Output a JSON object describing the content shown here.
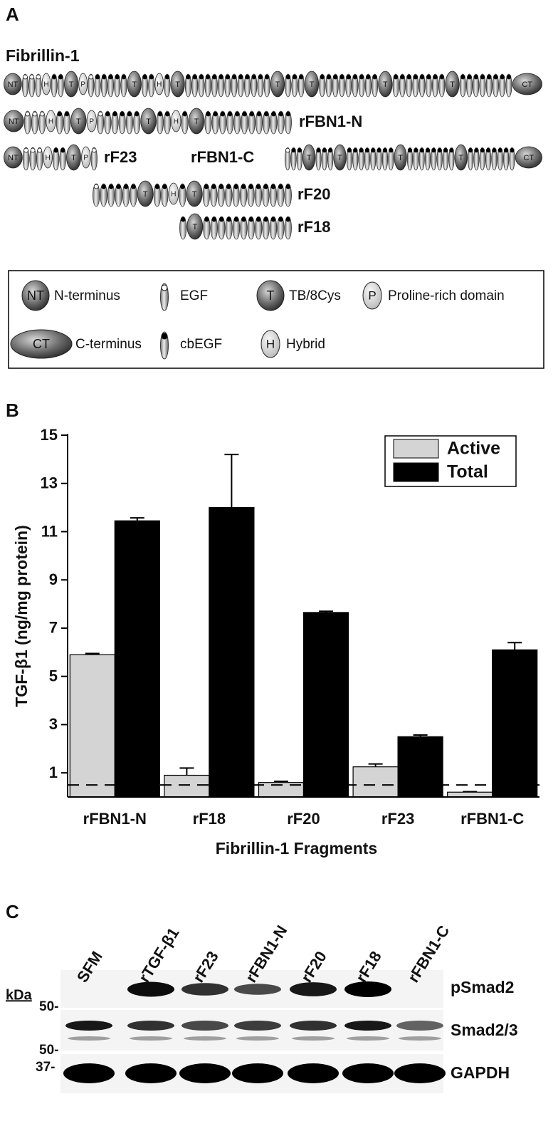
{
  "panel_a": {
    "label": "A",
    "constructs": [
      {
        "name": "Fibrillin-1",
        "domains": [
          "NT",
          "H",
          "T",
          "P",
          "T",
          "H",
          "T",
          "T",
          "T",
          "T",
          "T",
          "CT"
        ]
      },
      {
        "name": "rFBN1-N",
        "domains": [
          "NT",
          "H",
          "T",
          "P",
          "T",
          "H",
          "T"
        ]
      },
      {
        "name": "rF23",
        "domains": [
          "NT",
          "H",
          "T",
          "P"
        ]
      },
      {
        "name": "rFBN1-C",
        "domains": [
          "T",
          "T",
          "T",
          "T",
          "CT"
        ]
      },
      {
        "name": "rF20",
        "domains": [
          "T",
          "H",
          "T"
        ]
      },
      {
        "name": "rF18",
        "domains": [
          "T"
        ]
      }
    ],
    "legend": [
      {
        "symbol": "NT",
        "text": "N-terminus"
      },
      {
        "text": "EGF"
      },
      {
        "symbol": "T",
        "text": "TB/8Cys"
      },
      {
        "symbol": "P",
        "text": "Proline-rich domain"
      },
      {
        "symbol": "CT",
        "text": "C-terminus"
      },
      {
        "text": "cbEGF"
      },
      {
        "symbol": "H",
        "text": "Hybrid"
      }
    ]
  },
  "chart_data": {
    "type": "bar",
    "panel_label": "B",
    "y_label": "TGF-β1 (ng/mg protein)",
    "x_label": "Fibrillin-1 Fragments",
    "categories": [
      "rFBN1-N",
      "rF18",
      "rF20",
      "rF23",
      "rFBN1-C"
    ],
    "series": [
      {
        "name": "Active",
        "color": "#d4d4d4",
        "values": [
          5.9,
          0.9,
          0.6,
          1.25,
          0.2
        ],
        "errors": [
          0.05,
          0.3,
          0.05,
          0.12,
          0.02
        ]
      },
      {
        "name": "Total",
        "color": "#000000",
        "values": [
          11.45,
          12.0,
          7.65,
          2.5,
          6.1
        ],
        "errors": [
          0.12,
          2.2,
          0.05,
          0.07,
          0.3
        ]
      }
    ],
    "reference_line": 0.5,
    "ylim": [
      0,
      15
    ],
    "yticks": [
      1,
      3,
      5,
      7,
      9,
      11,
      13,
      15
    ],
    "legend_position": "upper-right"
  },
  "panel_c": {
    "label": "C",
    "lanes": [
      "SFM",
      "rTGF-β1",
      "rF23",
      "rFBN1-N",
      "rF20",
      "rF18",
      "rFBN1-C"
    ],
    "unit": "kDa",
    "markers": [
      "50-",
      "50-",
      "37-"
    ],
    "rows": [
      "pSmad2",
      "Smad2/3",
      "GAPDH"
    ]
  }
}
